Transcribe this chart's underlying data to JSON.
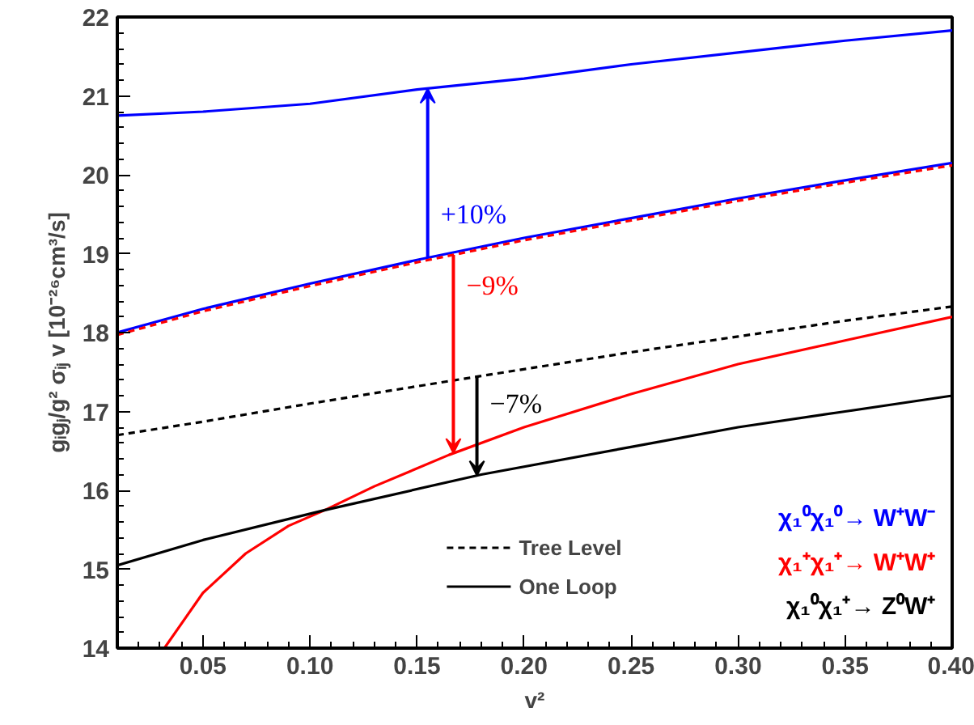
{
  "chart_data": {
    "type": "line",
    "xlabel": "v²",
    "ylabel": "gᵢgⱼ/g² σᵢⱼ v [10⁻²⁶cm³/s]",
    "xlim": [
      0.01,
      0.4
    ],
    "ylim": [
      14,
      22
    ],
    "xticks": [
      0.05,
      {
        "value": 0.1,
        "label": "0.10"
      },
      0.15,
      {
        "value": 0.2,
        "label": "0.20"
      },
      0.25,
      {
        "value": 0.3,
        "label": "0.30"
      },
      0.35,
      {
        "value": 0.4,
        "label": "0.40"
      }
    ],
    "yticks": [
      14,
      15,
      16,
      17,
      18,
      19,
      20,
      21,
      22
    ],
    "grid": false,
    "legend": "bottom",
    "marker": "none",
    "series": [
      {
        "name": "χ₁⁰χ₁⁰→ W⁺W⁻",
        "color": "#0000ff",
        "line_style": "solid",
        "x": [
          0.01,
          0.05,
          0.1,
          0.15,
          0.2,
          0.25,
          0.3,
          0.35,
          0.4
        ],
        "values": [
          20.75,
          20.8,
          20.9,
          21.08,
          21.22,
          21.4,
          21.55,
          21.7,
          21.83
        ]
      },
      {
        "color": "#0000ff",
        "line_style": "solid",
        "x": [
          0.01,
          0.05,
          0.1,
          0.15,
          0.2,
          0.25,
          0.3,
          0.35,
          0.4
        ],
        "values": [
          18.0,
          18.3,
          18.62,
          18.92,
          19.2,
          19.45,
          19.7,
          19.93,
          20.15
        ]
      },
      {
        "name": "χ₁⁺χ₁⁺→ W⁺W⁺",
        "color": "#ff0000",
        "line_style": "solid",
        "x": [
          0.032,
          0.05,
          0.07,
          0.09,
          0.107,
          0.13,
          0.165,
          0.2,
          0.25,
          0.3,
          0.35,
          0.4
        ],
        "values": [
          14.0,
          14.7,
          15.2,
          15.55,
          15.75,
          16.05,
          16.45,
          16.8,
          17.22,
          17.6,
          17.9,
          18.2
        ]
      },
      {
        "color": "#ff0000",
        "line_style": "dashed",
        "x": [
          0.01,
          0.05,
          0.1,
          0.15,
          0.2,
          0.25,
          0.3,
          0.35,
          0.4
        ],
        "values": [
          17.97,
          18.27,
          18.59,
          18.89,
          19.17,
          19.42,
          19.67,
          19.9,
          20.12
        ]
      },
      {
        "name": "χ₁⁰χ₁⁺→ Z⁰W⁺",
        "color": "#000000",
        "line_style": "solid",
        "x": [
          0.01,
          0.05,
          0.107,
          0.18,
          0.25,
          0.3,
          0.35,
          0.4
        ],
        "values": [
          15.05,
          15.37,
          15.75,
          16.2,
          16.55,
          16.8,
          17.0,
          17.2
        ]
      },
      {
        "color": "#000000",
        "line_style": "dashed",
        "x": [
          0.01,
          0.05,
          0.1,
          0.18,
          0.25,
          0.3,
          0.35,
          0.4
        ],
        "values": [
          16.7,
          16.87,
          17.1,
          17.45,
          17.75,
          17.95,
          18.15,
          18.33
        ]
      }
    ],
    "annotations": [
      {
        "text": "+10%",
        "x": 0.155,
        "y": 18.92
      },
      {
        "text": "−9%",
        "x": 0.167,
        "y": 18.96
      },
      {
        "text": "−7%",
        "x": 0.178,
        "y": 17.47
      },
      "Tree Level",
      "One Loop"
    ]
  }
}
